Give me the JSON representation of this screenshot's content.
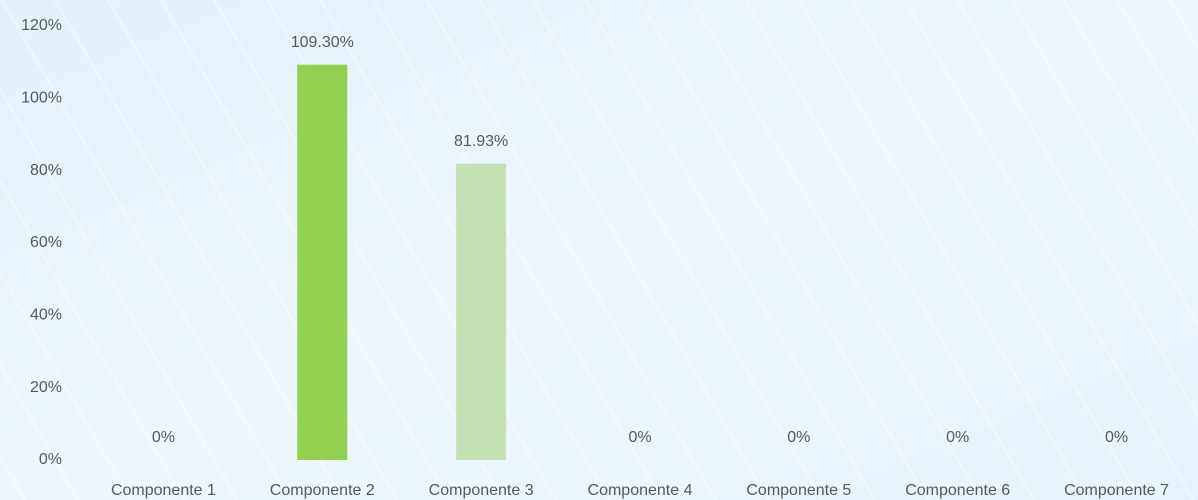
{
  "chart_data": {
    "type": "bar",
    "categories": [
      "Componente 1",
      "Componente 2",
      "Componente 3",
      "Componente 4",
      "Componente 5",
      "Componente 6",
      "Componente 7"
    ],
    "values": [
      0,
      109.3,
      81.93,
      0,
      0,
      0,
      0
    ],
    "value_labels": [
      "0%",
      "109.30%",
      "81.93%",
      "0%",
      "0%",
      "0%",
      "0%"
    ],
    "colors": [
      "#92d050",
      "#92d050",
      "#c5e0b4",
      "#92d050",
      "#92d050",
      "#92d050",
      "#92d050"
    ],
    "ylim": [
      0,
      120
    ],
    "yticks": [
      {
        "value": 0,
        "label": "0%"
      },
      {
        "value": 20,
        "label": "20%"
      },
      {
        "value": 40,
        "label": "40%"
      },
      {
        "value": 60,
        "label": "60%"
      },
      {
        "value": 80,
        "label": "80%"
      },
      {
        "value": 100,
        "label": "100%"
      },
      {
        "value": 120,
        "label": "120%"
      }
    ],
    "grid": false
  }
}
